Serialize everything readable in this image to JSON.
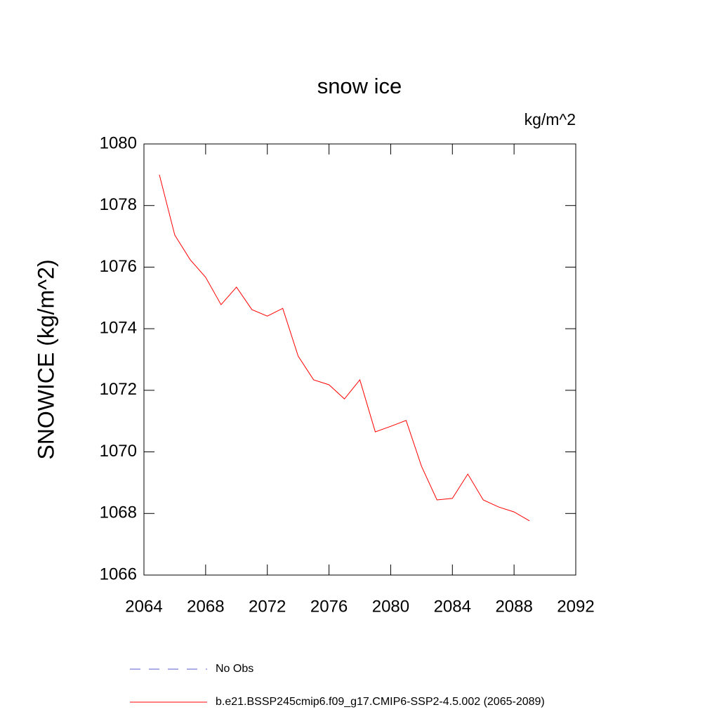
{
  "chart_data": {
    "type": "line",
    "title": "snow ice",
    "units_label": "kg/m^2",
    "y_label": "SNOWICE  (kg/m^2)",
    "x": [
      2065,
      2066,
      2067,
      2068,
      2069,
      2070,
      2071,
      2072,
      2073,
      2074,
      2075,
      2076,
      2077,
      2078,
      2079,
      2080,
      2081,
      2082,
      2083,
      2084,
      2085,
      2086,
      2087,
      2088,
      2089
    ],
    "series": [
      {
        "name": "No Obs",
        "color": "#5a5acd",
        "dashed": true,
        "values": [
          null,
          null,
          null,
          null,
          null,
          null,
          null,
          null,
          null,
          null,
          null,
          null,
          null,
          null,
          null,
          null,
          null,
          null,
          null,
          null,
          null,
          null,
          null,
          null,
          null
        ]
      },
      {
        "name": "b.e21.BSSP245cmip6.f09_g17.CMIP6-SSP2-4.5.002 (2065-2089)",
        "color": "#ff0000",
        "dashed": false,
        "values": [
          1079.0,
          1077.04,
          1076.24,
          1075.67,
          1074.78,
          1075.35,
          1074.62,
          1074.41,
          1074.66,
          1073.11,
          1072.34,
          1072.18,
          1071.72,
          1072.34,
          1070.65,
          1070.83,
          1071.02,
          1069.53,
          1068.44,
          1068.49,
          1069.28,
          1068.44,
          1068.21,
          1068.05,
          1067.76
        ]
      }
    ],
    "xlim": [
      2064,
      2092
    ],
    "xticks": [
      2064,
      2068,
      2072,
      2076,
      2080,
      2084,
      2088,
      2092
    ],
    "ylim": [
      1066,
      1080
    ],
    "yticks": [
      1066,
      1068,
      1070,
      1072,
      1074,
      1076,
      1078,
      1080
    ]
  }
}
